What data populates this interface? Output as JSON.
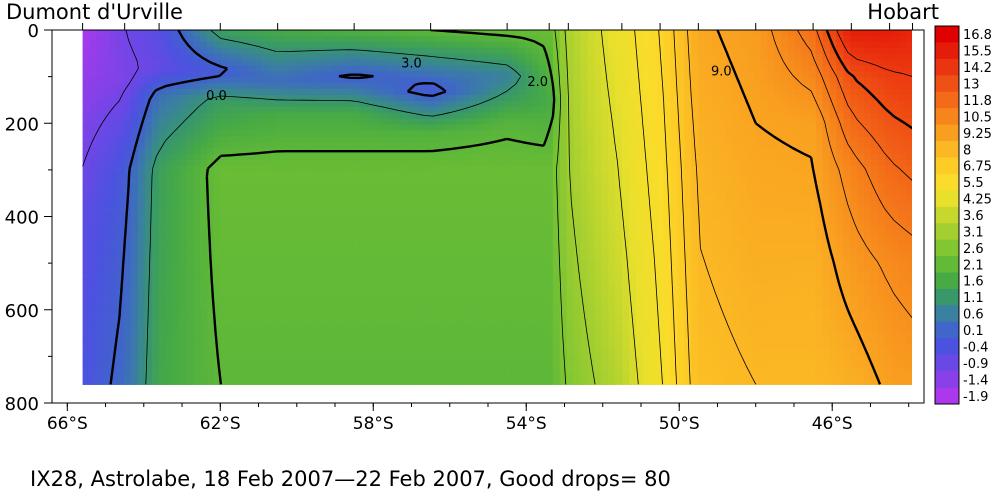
{
  "header": {
    "left_label": "Dumont d'Urville",
    "right_label": "Hobart"
  },
  "footer": {
    "caption": "IX28, Astrolabe, 18 Feb 2007—22 Feb 2007, Good drops= 80"
  },
  "chart_data": {
    "type": "heatmap",
    "title": "IX28, Astrolabe, 18 Feb 2007—22 Feb 2007, Good drops= 80",
    "xlabel": "",
    "ylabel": "",
    "x_range": [
      -66.4,
      -43.6
    ],
    "y_range": [
      0,
      800
    ],
    "y_inverted": true,
    "data_depth_max": 760,
    "x_ticks": [
      {
        "value": -66,
        "label": "66°S"
      },
      {
        "value": -62,
        "label": "62°S"
      },
      {
        "value": -58,
        "label": "58°S"
      },
      {
        "value": -54,
        "label": "54°S"
      },
      {
        "value": -50,
        "label": "50°S"
      },
      {
        "value": -46,
        "label": "46°S"
      }
    ],
    "y_ticks": [
      0,
      200,
      400,
      600,
      800
    ],
    "colorbar_labels": [
      "16.8",
      "15.5",
      "14.2",
      "13",
      "11.8",
      "10.5",
      "9.25",
      "8",
      "6.75",
      "5.5",
      "4.25",
      "3.6",
      "3.1",
      "2.6",
      "2.1",
      "1.6",
      "1.1",
      "0.6",
      "0.1",
      "-0.4",
      "-0.9",
      "-1.4",
      "-1.9"
    ],
    "colorbar_colors": [
      "#e00000",
      "#e51c0a",
      "#eb3510",
      "#ef5014",
      "#f36a18",
      "#f6851c",
      "#f99f20",
      "#fbb824",
      "#fdcc26",
      "#fbdc2a",
      "#e9e02c",
      "#c6d82e",
      "#a4cf30",
      "#82c632",
      "#63ba36",
      "#47aa44",
      "#38986a",
      "#3a80a0",
      "#3f66c8",
      "#4c52e0",
      "#6a48e6",
      "#8a40e8",
      "#ac38ee"
    ],
    "contour_labels": [
      {
        "text": "3.0",
        "lat": -57.0,
        "depth": 80
      },
      {
        "text": "0.0",
        "lat": -62.1,
        "depth": 150
      },
      {
        "text": "2.0",
        "lat": -53.7,
        "depth": 120
      },
      {
        "text": "9.0",
        "lat": -48.9,
        "depth": 98
      }
    ],
    "series": [
      {
        "lat": -65.6,
        "profile": [
          [
            0,
            -1.9
          ],
          [
            150,
            -1.4
          ],
          [
            400,
            -0.7
          ],
          [
            760,
            -0.4
          ]
        ]
      },
      {
        "lat": -64.5,
        "profile": [
          [
            0,
            -1.0
          ],
          [
            100,
            -1.2
          ],
          [
            300,
            -0.2
          ],
          [
            760,
            0.2
          ]
        ]
      },
      {
        "lat": -63.6,
        "profile": [
          [
            0,
            -0.6
          ],
          [
            80,
            -0.8
          ],
          [
            140,
            0.3
          ],
          [
            300,
            1.3
          ],
          [
            760,
            1.5
          ]
        ]
      },
      {
        "lat": -62.0,
        "profile": [
          [
            0,
            1.3
          ],
          [
            90,
            -0.2
          ],
          [
            150,
            1.2
          ],
          [
            300,
            2.2
          ],
          [
            760,
            2.0
          ]
        ]
      },
      {
        "lat": -60.5,
        "profile": [
          [
            0,
            1.6
          ],
          [
            110,
            0.2
          ],
          [
            180,
            1.6
          ],
          [
            300,
            2.2
          ],
          [
            760,
            2.0
          ]
        ]
      },
      {
        "lat": -58.5,
        "profile": [
          [
            0,
            1.8
          ],
          [
            100,
            -0.1
          ],
          [
            180,
            1.6
          ],
          [
            300,
            2.2
          ],
          [
            760,
            2.0
          ]
        ]
      },
      {
        "lat": -56.5,
        "profile": [
          [
            0,
            2.0
          ],
          [
            130,
            -0.3
          ],
          [
            220,
            1.8
          ],
          [
            300,
            2.2
          ],
          [
            760,
            2.0
          ]
        ]
      },
      {
        "lat": -54.5,
        "profile": [
          [
            0,
            2.2
          ],
          [
            100,
            0.6
          ],
          [
            200,
            1.9
          ],
          [
            300,
            2.2
          ],
          [
            760,
            2.0
          ]
        ]
      },
      {
        "lat": -53.4,
        "profile": [
          [
            0,
            2.2
          ],
          [
            150,
            1.6
          ],
          [
            300,
            2.2
          ],
          [
            760,
            2.0
          ]
        ]
      },
      {
        "lat": -52.9,
        "profile": [
          [
            0,
            3.2
          ],
          [
            300,
            3.0
          ],
          [
            760,
            2.6
          ]
        ]
      },
      {
        "lat": -51.5,
        "profile": [
          [
            0,
            4.5
          ],
          [
            200,
            4.2
          ],
          [
            500,
            3.8
          ],
          [
            760,
            3.4
          ]
        ]
      },
      {
        "lat": -50.5,
        "profile": [
          [
            0,
            6.0
          ],
          [
            300,
            5.5
          ],
          [
            760,
            4.8
          ]
        ]
      },
      {
        "lat": -49.5,
        "profile": [
          [
            0,
            8.8
          ],
          [
            300,
            8.2
          ],
          [
            760,
            7.6
          ]
        ]
      },
      {
        "lat": -48.0,
        "profile": [
          [
            0,
            9.4
          ],
          [
            300,
            8.8
          ],
          [
            760,
            8.0
          ]
        ]
      },
      {
        "lat": -46.5,
        "profile": [
          [
            0,
            11.6
          ],
          [
            200,
            9.2
          ],
          [
            500,
            8.4
          ],
          [
            760,
            8.0
          ]
        ]
      },
      {
        "lat": -45.5,
        "profile": [
          [
            0,
            15.5
          ],
          [
            100,
            13.0
          ],
          [
            300,
            10.5
          ],
          [
            500,
            9.5
          ],
          [
            760,
            8.4
          ]
        ]
      },
      {
        "lat": -44.5,
        "profile": [
          [
            0,
            15.5
          ],
          [
            100,
            13.8
          ],
          [
            300,
            11.8
          ],
          [
            500,
            10.2
          ],
          [
            760,
            9.2
          ]
        ]
      },
      {
        "lat": -43.9,
        "profile": [
          [
            0,
            15.0
          ],
          [
            100,
            14.0
          ],
          [
            300,
            12.2
          ],
          [
            500,
            10.5
          ],
          [
            760,
            9.4
          ]
        ]
      }
    ]
  }
}
